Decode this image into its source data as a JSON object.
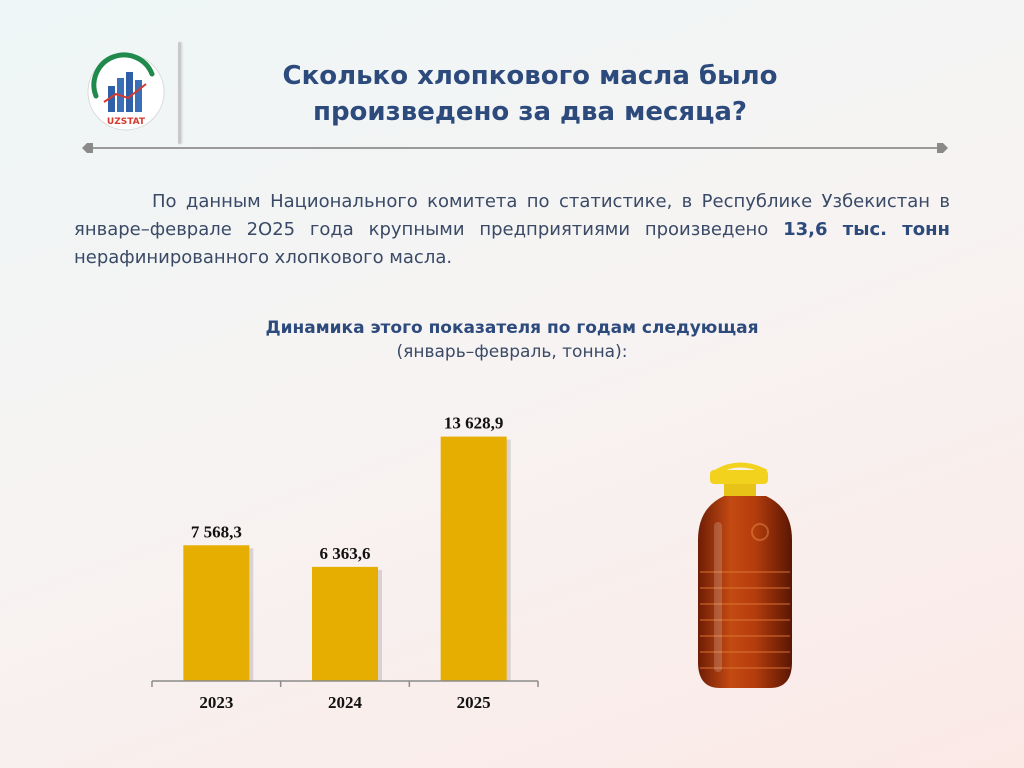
{
  "header": {
    "logo_text": "UZSTAT",
    "title_line1": "Сколько хлопкового масла было",
    "title_line2": "произведено за два месяца?"
  },
  "intro": {
    "part1": "По данным Национального комитета по статистике, в Республике Узбекистан в январе–феврале 2О25 года крупными предприятиями произведено ",
    "highlight": "13,6 тыс. тонн",
    "part2": " нерафинированного хлопкового масла."
  },
  "chart_data": {
    "type": "bar",
    "title": "Динамика этого показателя по годам следующая",
    "subtitle": "(январь–февраль, тонна):",
    "categories": [
      "2023",
      "2024",
      "2025"
    ],
    "values": [
      7568.3,
      6363.6,
      13628.9
    ],
    "value_labels": [
      "7 568,3",
      "6 363,6",
      "13 628,9"
    ],
    "ylim": [
      0,
      15000
    ],
    "bar_color": "#e6ae00",
    "grid": false,
    "legend": "none"
  },
  "illustration": {
    "icon": "oil-bottle-icon"
  }
}
